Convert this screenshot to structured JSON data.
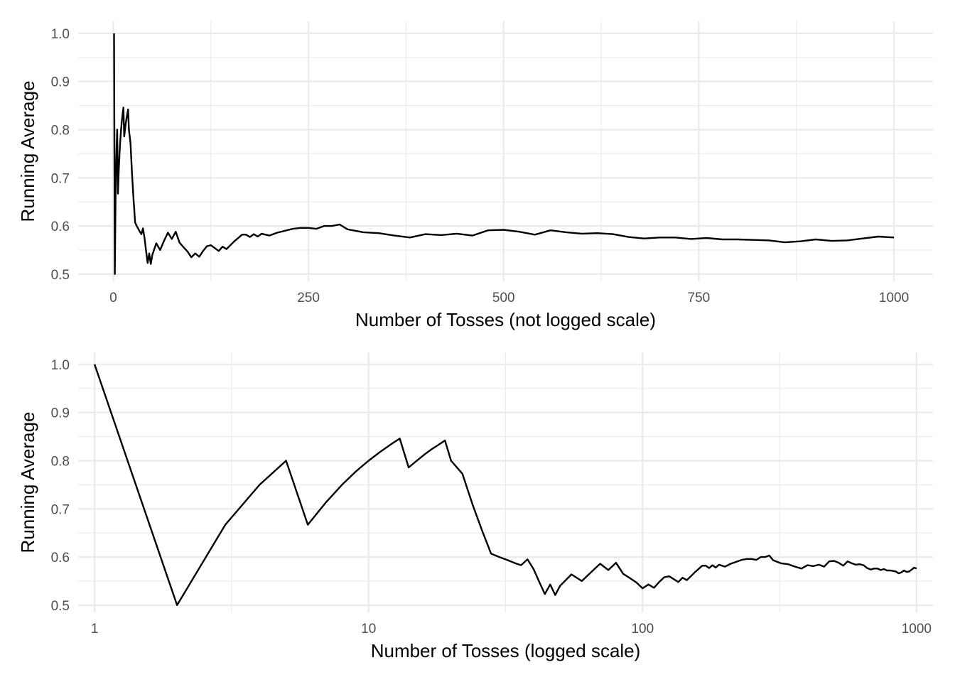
{
  "chart_data": [
    {
      "type": "line",
      "xlabel": "Number of Tosses (not logged scale)",
      "ylabel": "Running Average",
      "xscale": "linear",
      "xlim": [
        -45,
        1050
      ],
      "ylim": [
        0.485,
        1.025
      ],
      "grid": true,
      "xticks": [
        0,
        250,
        500,
        750,
        1000
      ],
      "xtick_labels": [
        "0",
        "250",
        "500",
        "750",
        "1000"
      ],
      "xminor": [
        125,
        375,
        625,
        875
      ],
      "yticks": [
        0.5,
        0.6,
        0.7,
        0.8,
        0.9,
        1.0
      ],
      "ytick_labels": [
        "0.5",
        "0.6",
        "0.7",
        "0.8",
        "0.9",
        "1.0"
      ],
      "yminor": [
        0.55,
        0.65,
        0.75,
        0.85,
        0.95
      ],
      "series": [
        {
          "x": [
            1,
            2,
            3,
            4,
            5,
            6,
            7,
            8,
            9,
            10,
            11,
            12,
            13,
            14,
            15,
            16,
            17,
            18,
            19,
            20,
            22,
            24,
            26,
            28,
            30,
            32,
            34,
            36,
            38,
            40,
            42,
            44,
            46,
            48,
            50,
            55,
            60,
            65,
            70,
            75,
            80,
            85,
            90,
            95,
            100,
            105,
            110,
            115,
            120,
            125,
            130,
            135,
            140,
            145,
            150,
            155,
            160,
            165,
            170,
            175,
            180,
            185,
            190,
            195,
            200,
            210,
            220,
            230,
            240,
            250,
            260,
            270,
            280,
            290,
            300,
            320,
            340,
            360,
            380,
            400,
            420,
            440,
            460,
            480,
            500,
            520,
            540,
            560,
            580,
            600,
            620,
            640,
            660,
            680,
            700,
            720,
            740,
            760,
            780,
            800,
            820,
            840,
            860,
            880,
            900,
            920,
            940,
            960,
            980,
            1000
          ],
          "y": [
            1.0,
            0.5,
            0.667,
            0.75,
            0.8,
            0.667,
            0.714,
            0.75,
            0.778,
            0.8,
            0.818,
            0.833,
            0.846,
            0.786,
            0.8,
            0.813,
            0.824,
            0.833,
            0.842,
            0.8,
            0.773,
            0.708,
            0.654,
            0.607,
            0.6,
            0.594,
            0.588,
            0.583,
            0.595,
            0.575,
            0.548,
            0.523,
            0.543,
            0.521,
            0.54,
            0.564,
            0.55,
            0.569,
            0.586,
            0.573,
            0.588,
            0.565,
            0.556,
            0.547,
            0.535,
            0.543,
            0.536,
            0.548,
            0.558,
            0.56,
            0.554,
            0.548,
            0.557,
            0.552,
            0.56,
            0.568,
            0.575,
            0.582,
            0.582,
            0.577,
            0.583,
            0.578,
            0.584,
            0.582,
            0.58,
            0.586,
            0.59,
            0.594,
            0.596,
            0.596,
            0.594,
            0.6,
            0.6,
            0.603,
            0.593,
            0.587,
            0.585,
            0.58,
            0.576,
            0.583,
            0.581,
            0.584,
            0.58,
            0.591,
            0.592,
            0.588,
            0.582,
            0.591,
            0.587,
            0.584,
            0.585,
            0.583,
            0.577,
            0.574,
            0.576,
            0.576,
            0.573,
            0.575,
            0.572,
            0.572,
            0.571,
            0.57,
            0.566,
            0.568,
            0.572,
            0.569,
            0.57,
            0.574,
            0.578,
            0.576
          ]
        }
      ]
    },
    {
      "type": "line",
      "xlabel": "Number of Tosses (logged scale)",
      "ylabel": "Running Average",
      "xscale": "log10",
      "xlim": [
        0.871,
        1148
      ],
      "ylim": [
        0.485,
        1.025
      ],
      "grid": true,
      "xticks": [
        1,
        10,
        100,
        1000
      ],
      "xtick_labels": [
        "1",
        "10",
        "100",
        "1000"
      ],
      "xminor": [
        3.162,
        31.62,
        316.2
      ],
      "yticks": [
        0.5,
        0.6,
        0.7,
        0.8,
        0.9,
        1.0
      ],
      "ytick_labels": [
        "0.5",
        "0.6",
        "0.7",
        "0.8",
        "0.9",
        "1.0"
      ],
      "yminor": [
        0.55,
        0.65,
        0.75,
        0.85,
        0.95
      ],
      "series": [
        {
          "x": [
            1,
            2,
            3,
            4,
            5,
            6,
            7,
            8,
            9,
            10,
            11,
            12,
            13,
            14,
            15,
            16,
            17,
            18,
            19,
            20,
            22,
            24,
            26,
            28,
            30,
            32,
            34,
            36,
            38,
            40,
            42,
            44,
            46,
            48,
            50,
            55,
            60,
            65,
            70,
            75,
            80,
            85,
            90,
            95,
            100,
            105,
            110,
            115,
            120,
            125,
            130,
            135,
            140,
            145,
            150,
            155,
            160,
            165,
            170,
            175,
            180,
            185,
            190,
            195,
            200,
            210,
            220,
            230,
            240,
            250,
            260,
            270,
            280,
            290,
            300,
            320,
            340,
            360,
            380,
            400,
            420,
            440,
            460,
            480,
            500,
            520,
            540,
            560,
            580,
            600,
            620,
            640,
            660,
            680,
            700,
            720,
            740,
            760,
            780,
            800,
            820,
            840,
            860,
            880,
            900,
            920,
            940,
            960,
            980,
            1000
          ],
          "y": [
            1.0,
            0.5,
            0.667,
            0.75,
            0.8,
            0.667,
            0.714,
            0.75,
            0.778,
            0.8,
            0.818,
            0.833,
            0.846,
            0.786,
            0.8,
            0.813,
            0.824,
            0.833,
            0.842,
            0.8,
            0.773,
            0.708,
            0.654,
            0.607,
            0.6,
            0.594,
            0.588,
            0.583,
            0.595,
            0.575,
            0.548,
            0.523,
            0.543,
            0.521,
            0.54,
            0.564,
            0.55,
            0.569,
            0.586,
            0.573,
            0.588,
            0.565,
            0.556,
            0.547,
            0.535,
            0.543,
            0.536,
            0.548,
            0.558,
            0.56,
            0.554,
            0.548,
            0.557,
            0.552,
            0.56,
            0.568,
            0.575,
            0.582,
            0.582,
            0.577,
            0.583,
            0.578,
            0.584,
            0.582,
            0.58,
            0.586,
            0.59,
            0.594,
            0.596,
            0.596,
            0.594,
            0.6,
            0.6,
            0.603,
            0.593,
            0.587,
            0.585,
            0.58,
            0.576,
            0.583,
            0.581,
            0.584,
            0.58,
            0.591,
            0.592,
            0.588,
            0.582,
            0.591,
            0.587,
            0.584,
            0.585,
            0.583,
            0.577,
            0.574,
            0.576,
            0.576,
            0.573,
            0.575,
            0.572,
            0.572,
            0.571,
            0.57,
            0.566,
            0.568,
            0.572,
            0.569,
            0.57,
            0.574,
            0.578,
            0.576
          ]
        }
      ]
    }
  ]
}
